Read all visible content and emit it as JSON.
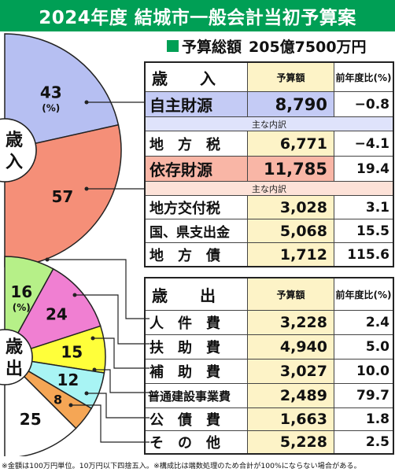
{
  "title": "2024年度 結城市一般会計当初予算案",
  "total": {
    "label": "予算総額",
    "value": "205億7500万円"
  },
  "revenue_table": {
    "header": {
      "name_a": "歳",
      "name_b": "入",
      "amount": "予算額",
      "ratio": "前年度比(%)"
    },
    "group1": {
      "name": "自主財源",
      "amount": "8,790",
      "ratio": "−0.8"
    },
    "group1_sub": "主な内訳",
    "group1_items": [
      {
        "name": "地　方　税",
        "amount": "6,771",
        "ratio": "−4.1"
      }
    ],
    "group2": {
      "name": "依存財源",
      "amount": "11,785",
      "ratio": "19.4"
    },
    "group2_sub": "主な内訳",
    "group2_items": [
      {
        "name": "地方交付税",
        "amount": "3,028",
        "ratio": "3.1"
      },
      {
        "name": "国、県支出金",
        "amount": "5,068",
        "ratio": "15.5"
      },
      {
        "name": "地　方　債",
        "amount": "1,712",
        "ratio": "115.6"
      }
    ]
  },
  "expense_table": {
    "header": {
      "name_a": "歳",
      "name_b": "出",
      "amount": "予算額",
      "ratio": "前年度比(%)"
    },
    "rows": [
      {
        "name": "人　件　費",
        "amount": "3,228",
        "ratio": "2.4"
      },
      {
        "name": "扶　助　費",
        "amount": "4,940",
        "ratio": "5.0"
      },
      {
        "name": "補　助　費",
        "amount": "3,027",
        "ratio": "10.0"
      },
      {
        "name": "普通建設事業費",
        "amount": "2,489",
        "ratio": "79.7"
      },
      {
        "name": "公　債　費",
        "amount": "1,663",
        "ratio": "1.8"
      },
      {
        "name": "そ　の　他",
        "amount": "5,228",
        "ratio": "2.5"
      }
    ]
  },
  "note": "※金額は100万円単位。10万円以下四捨五入。※構成比は端数処理のため合計が100%にならない場合がある。",
  "chart_data": [
    {
      "type": "pie",
      "center_label": "歳入",
      "unit_label": "(%)",
      "slices": [
        {
          "value": 43,
          "label": "43",
          "color": "#b6bff2"
        },
        {
          "value": 57,
          "label": "57",
          "color": "#f58f78"
        }
      ]
    },
    {
      "type": "pie",
      "center_label": "歳出",
      "unit_label": "(%)",
      "slices": [
        {
          "value": 16,
          "label": "16",
          "color": "#b6f088"
        },
        {
          "value": 24,
          "label": "24",
          "color": "#f07fd2"
        },
        {
          "value": 15,
          "label": "15",
          "color": "#ffff3a"
        },
        {
          "value": 12,
          "label": "12",
          "color": "#a8f4f4"
        },
        {
          "value": 8,
          "label": "8",
          "color": "#f5a655"
        },
        {
          "value": 25,
          "label": "25",
          "color": "#ffffff"
        }
      ]
    }
  ]
}
